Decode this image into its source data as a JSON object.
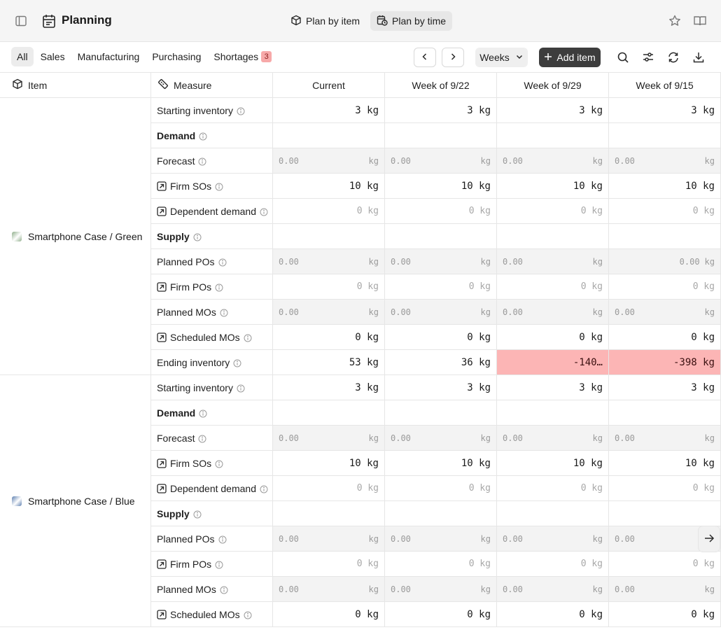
{
  "header": {
    "title": "Planning",
    "views": [
      {
        "label": "Plan by item",
        "active": false
      },
      {
        "label": "Plan by time",
        "active": true
      }
    ]
  },
  "filters": {
    "tabs": [
      "All",
      "Sales",
      "Manufacturing",
      "Purchasing",
      "Shortages"
    ],
    "active": "All",
    "shortages_count": "3",
    "period": "Weeks",
    "add_item": "Add item"
  },
  "grid": {
    "item_header": "Item",
    "measure_header": "Measure",
    "columns": [
      "Current",
      "Week of 9/22",
      "Week of 9/29",
      "Week of 9/15"
    ]
  },
  "items": [
    {
      "name": "Smartphone Case / Green",
      "swatch": "#8fae8b",
      "rows": [
        {
          "label": "Starting inventory",
          "kind": "num",
          "values": [
            "3 kg",
            "3 kg",
            "3 kg",
            "3 kg"
          ]
        },
        {
          "label": "Demand",
          "kind": "section",
          "values": [
            "",
            "",
            "",
            ""
          ]
        },
        {
          "label": "Forecast",
          "kind": "edit",
          "values": [
            "0.00",
            "0.00",
            "0.00",
            "0.00"
          ],
          "unit": "kg"
        },
        {
          "label": "Firm SOs",
          "kind": "num",
          "link": true,
          "values": [
            "10 kg",
            "10 kg",
            "10 kg",
            "10 kg"
          ]
        },
        {
          "label": "Dependent demand",
          "kind": "muted",
          "link": true,
          "values": [
            "0 kg",
            "0 kg",
            "0 kg",
            "0 kg"
          ]
        },
        {
          "label": "Supply",
          "kind": "section",
          "values": [
            "",
            "",
            "",
            ""
          ]
        },
        {
          "label": "Planned POs",
          "kind": "edit",
          "values": [
            "0.00",
            "0.00",
            "0.00",
            "0.00"
          ],
          "unit": "kg"
        },
        {
          "label": "Firm POs",
          "kind": "muted",
          "link": true,
          "values": [
            "0 kg",
            "0 kg",
            "0 kg",
            "0 kg"
          ]
        },
        {
          "label": "Planned MOs",
          "kind": "edit",
          "values": [
            "0.00",
            "0.00",
            "0.00",
            "0.00"
          ],
          "unit": "kg"
        },
        {
          "label": "Scheduled MOs",
          "kind": "num",
          "link": true,
          "values": [
            "0 kg",
            "0 kg",
            "0 kg",
            "0 kg"
          ]
        },
        {
          "label": "Ending inventory",
          "kind": "ending",
          "values": [
            "53 kg",
            "36 kg",
            "-140…",
            "-398 kg"
          ],
          "negative": [
            false,
            false,
            true,
            true
          ]
        }
      ]
    },
    {
      "name": "Smartphone Case / Blue",
      "swatch": "#5d7fb0",
      "rows": [
        {
          "label": "Starting inventory",
          "kind": "num",
          "values": [
            "3 kg",
            "3 kg",
            "3 kg",
            "3 kg"
          ]
        },
        {
          "label": "Demand",
          "kind": "section",
          "values": [
            "",
            "",
            "",
            ""
          ]
        },
        {
          "label": "Forecast",
          "kind": "edit",
          "values": [
            "0.00",
            "0.00",
            "0.00",
            "0.00"
          ],
          "unit": "kg"
        },
        {
          "label": "Firm SOs",
          "kind": "num",
          "link": true,
          "values": [
            "10 kg",
            "10 kg",
            "10 kg",
            "10 kg"
          ]
        },
        {
          "label": "Dependent demand",
          "kind": "muted",
          "link": true,
          "values": [
            "0 kg",
            "0 kg",
            "0 kg",
            "0 kg"
          ]
        },
        {
          "label": "Supply",
          "kind": "section",
          "values": [
            "",
            "",
            "",
            ""
          ]
        },
        {
          "label": "Planned POs",
          "kind": "edit",
          "values": [
            "0.00",
            "0.00",
            "0.00",
            "0.00"
          ],
          "unit": "kg"
        },
        {
          "label": "Firm POs",
          "kind": "muted",
          "link": true,
          "values": [
            "0 kg",
            "0 kg",
            "0 kg",
            "0 kg"
          ]
        },
        {
          "label": "Planned MOs",
          "kind": "edit",
          "values": [
            "0.00",
            "0.00",
            "0.00",
            "0.00"
          ],
          "unit": "kg"
        },
        {
          "label": "Scheduled MOs",
          "kind": "num",
          "link": true,
          "values": [
            "0 kg",
            "0 kg",
            "0 kg",
            "0 kg"
          ]
        }
      ]
    }
  ]
}
